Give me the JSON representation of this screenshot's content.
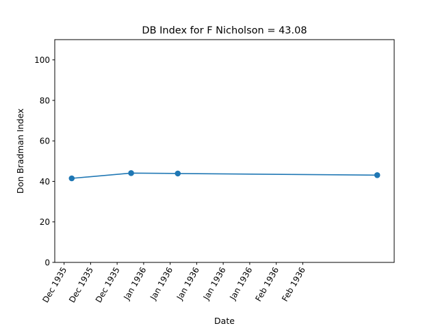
{
  "chart_data": {
    "type": "line",
    "title": "DB Index for F Nicholson = 43.08",
    "xlabel": "Date",
    "ylabel": "Don Bradman Index",
    "ylim": [
      0,
      110
    ],
    "yticks": [
      0,
      20,
      40,
      60,
      80,
      100
    ],
    "xlim": [
      "1935-11-28",
      "1936-02-16"
    ],
    "xtick_labels": [
      "Dec 1935",
      "Dec 1935",
      "Dec 1935",
      "Jan 1936",
      "Jan 1936",
      "Jan 1936",
      "Jan 1936",
      "Jan 1936",
      "Feb 1936",
      "Feb 1936"
    ],
    "grid": false,
    "series": [
      {
        "color": "#1f77b4",
        "x": [
          "1935-12-02",
          "1935-12-16",
          "1935-12-27",
          "1936-02-12"
        ],
        "y": [
          41.5,
          44.1,
          43.9,
          43.08
        ]
      }
    ]
  }
}
